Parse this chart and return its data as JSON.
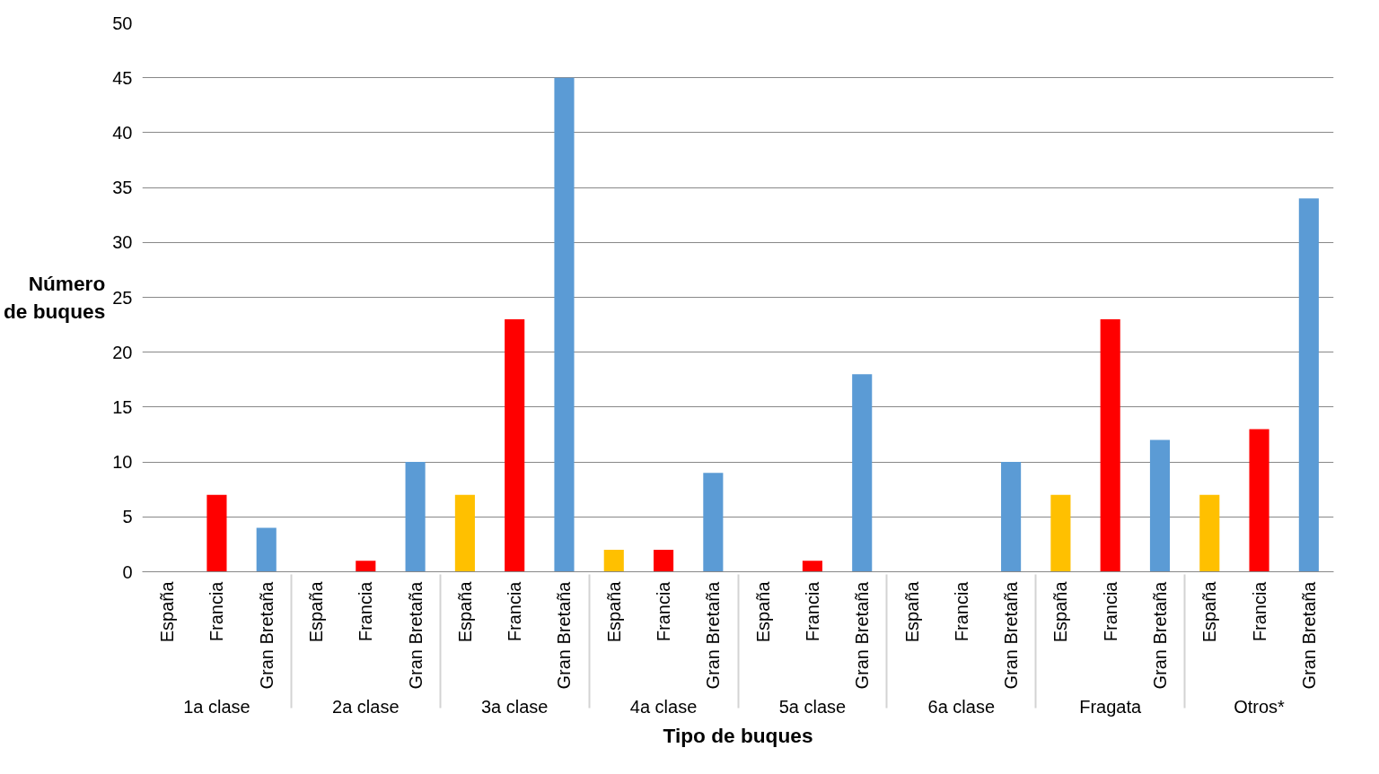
{
  "chart_data": {
    "type": "bar",
    "xlabel": "Tipo de buques",
    "ylabel": "Número\nde buques",
    "categories": [
      "1a clase",
      "2a clase",
      "3a clase",
      "4a clase",
      "5a clase",
      "6a clase",
      "Fragata",
      "Otros*"
    ],
    "series": [
      {
        "name": "España",
        "color": "#ffc000",
        "values": [
          0,
          0,
          7,
          2,
          0,
          0,
          7,
          7
        ]
      },
      {
        "name": "Francia",
        "color": "#ff0000",
        "values": [
          7,
          1,
          23,
          2,
          1,
          0,
          23,
          13
        ]
      },
      {
        "name": "Gran Bretaña",
        "color": "#5b9bd5",
        "values": [
          4,
          10,
          45,
          9,
          18,
          10,
          12,
          34
        ]
      }
    ],
    "ylim": [
      0,
      50
    ],
    "yticks": [
      0,
      5,
      10,
      15,
      20,
      25,
      30,
      35,
      40,
      45,
      50
    ],
    "grid": "y"
  }
}
